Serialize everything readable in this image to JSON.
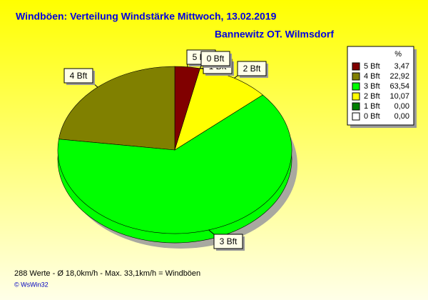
{
  "chart_data": {
    "type": "pie",
    "title": "Windböen: Verteilung Windstärke  Mittwoch, 13.02.2019",
    "subtitle": "Bannewitz OT. Wilmsdorf",
    "legend_header": "%",
    "categories": [
      "5 Bft",
      "4 Bft",
      "3 Bft",
      "2 Bft",
      "1 Bft",
      "0 Bft"
    ],
    "values": [
      3.47,
      22.92,
      63.54,
      10.07,
      0.0,
      0.0
    ],
    "value_labels": [
      "3,47",
      "22,92",
      "63,54",
      "10,07",
      "0,00",
      "0,00"
    ],
    "colors": [
      "#800000",
      "#808000",
      "#00ff00",
      "#ffff00",
      "#008000",
      "#ffffff"
    ],
    "footer": "288 Werte   -   Ø 18,0km/h  -  Max. 33,1km/h = Windböen",
    "credit": "© WsWin32"
  }
}
